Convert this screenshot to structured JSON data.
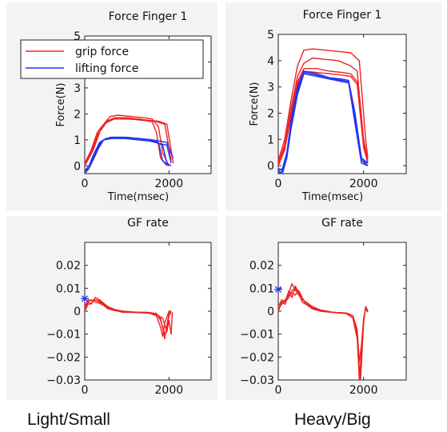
{
  "colors": {
    "grip": "#ee2222",
    "lift": "#2233ee",
    "marker": "#2233ee"
  },
  "captions": [
    "Light/Small",
    "Heavy/Big"
  ],
  "legend": {
    "entries": [
      "grip force",
      "lifting force"
    ],
    "placement": "top-left"
  },
  "chart_data": [
    {
      "type": "line",
      "title": "Force Finger 1",
      "xlabel": "Time(msec)",
      "ylabel": "Force(N)",
      "xlim": [
        0,
        3000
      ],
      "ylim": [
        -0.3,
        5
      ],
      "xticks": [
        0,
        2000
      ],
      "yticks": [
        0,
        1,
        2,
        3,
        4,
        5
      ],
      "ytick_labels": [
        "0",
        "1",
        "2",
        "3",
        "4",
        "5"
      ],
      "series": [
        {
          "name": "grip force",
          "color": "grip",
          "x": [
            0,
            150,
            300,
            500,
            700,
            1000,
            1300,
            1500,
            1700,
            1900,
            2050
          ],
          "y": [
            0.1,
            0.6,
            1.3,
            1.7,
            1.85,
            1.85,
            1.8,
            1.75,
            1.7,
            1.6,
            0.2
          ]
        },
        {
          "name": "grip force",
          "color": "grip",
          "x": [
            0,
            150,
            300,
            500,
            700,
            1000,
            1300,
            1500,
            1750,
            1950,
            2100
          ],
          "y": [
            0.0,
            0.5,
            1.2,
            1.65,
            1.8,
            1.8,
            1.78,
            1.75,
            1.72,
            1.6,
            0.1
          ]
        },
        {
          "name": "grip force",
          "color": "grip",
          "x": [
            0,
            200,
            400,
            600,
            800,
            1100,
            1400,
            1600,
            1750,
            1850,
            2000
          ],
          "y": [
            0.0,
            0.6,
            1.5,
            1.9,
            1.95,
            1.9,
            1.85,
            1.8,
            1.5,
            0.5,
            0.0
          ]
        },
        {
          "name": "grip force",
          "color": "grip",
          "x": [
            0,
            150,
            350,
            550,
            800,
            1100,
            1400,
            1600,
            1700,
            1800,
            1950
          ],
          "y": [
            0.05,
            0.5,
            1.3,
            1.75,
            1.85,
            1.8,
            1.75,
            1.7,
            1.3,
            0.3,
            0.0
          ]
        },
        {
          "name": "lifting force",
          "color": "lift",
          "x": [
            0,
            100,
            200,
            350,
            500,
            700,
            1000,
            1300,
            1600,
            1800,
            1950,
            2100
          ],
          "y": [
            -0.2,
            -0.1,
            0.3,
            0.85,
            1.05,
            1.1,
            1.1,
            1.05,
            1.0,
            0.95,
            0.9,
            0.3
          ]
        },
        {
          "name": "lifting force",
          "color": "lift",
          "x": [
            0,
            100,
            200,
            350,
            500,
            700,
            1000,
            1300,
            1600,
            1750,
            1850,
            2000
          ],
          "y": [
            -0.2,
            0.0,
            0.4,
            0.9,
            1.05,
            1.1,
            1.08,
            1.05,
            1.0,
            0.9,
            0.2,
            0.0
          ]
        },
        {
          "name": "lifting force",
          "color": "lift",
          "x": [
            0,
            100,
            250,
            400,
            600,
            900,
            1200,
            1500,
            1700,
            1850,
            1950,
            2050
          ],
          "y": [
            -0.3,
            -0.1,
            0.4,
            0.95,
            1.1,
            1.1,
            1.05,
            1.0,
            0.9,
            0.8,
            0.1,
            0.0
          ]
        },
        {
          "name": "lifting force",
          "color": "lift",
          "x": [
            0,
            150,
            300,
            450,
            650,
            950,
            1250,
            1550,
            1800,
            1950,
            2050
          ],
          "y": [
            -0.2,
            0.1,
            0.6,
            1.0,
            1.05,
            1.05,
            1.0,
            0.95,
            0.85,
            0.8,
            0.1
          ]
        }
      ]
    },
    {
      "type": "line",
      "title": "Force Finger 1",
      "xlabel": "Time(msec)",
      "ylabel": "Force(N)",
      "xlim": [
        0,
        3000
      ],
      "ylim": [
        -0.3,
        5
      ],
      "xticks": [
        0,
        2000
      ],
      "yticks": [
        0,
        1,
        2,
        3,
        4,
        5
      ],
      "ytick_labels": [
        "0",
        "1",
        "2",
        "3",
        "4",
        "5"
      ],
      "series": [
        {
          "name": "grip force",
          "color": "grip",
          "x": [
            0,
            150,
            300,
            450,
            600,
            800,
            1100,
            1400,
            1700,
            1900,
            2050,
            2100
          ],
          "y": [
            0.2,
            1.0,
            2.5,
            3.8,
            4.4,
            4.45,
            4.4,
            4.35,
            4.3,
            4.0,
            1.0,
            0.3
          ]
        },
        {
          "name": "grip force",
          "color": "grip",
          "x": [
            0,
            150,
            300,
            450,
            600,
            800,
            1100,
            1400,
            1700,
            1850,
            2000,
            2100
          ],
          "y": [
            0.1,
            0.8,
            2.2,
            3.4,
            3.9,
            4.1,
            4.05,
            4.0,
            3.8,
            3.6,
            1.0,
            0.2
          ]
        },
        {
          "name": "grip force",
          "color": "grip",
          "x": [
            0,
            150,
            300,
            450,
            600,
            900,
            1200,
            1500,
            1700,
            1850,
            2000,
            2100
          ],
          "y": [
            0.0,
            0.7,
            2.0,
            3.2,
            3.7,
            3.7,
            3.6,
            3.55,
            3.5,
            3.2,
            0.8,
            0.1
          ]
        },
        {
          "name": "grip force",
          "color": "grip",
          "x": [
            0,
            150,
            300,
            450,
            600,
            900,
            1200,
            1500,
            1700,
            1850,
            2000,
            2100
          ],
          "y": [
            0.0,
            0.6,
            1.9,
            3.1,
            3.6,
            3.55,
            3.5,
            3.45,
            3.4,
            3.1,
            0.7,
            0.1
          ]
        },
        {
          "name": "lifting force",
          "color": "lift",
          "x": [
            0,
            100,
            200,
            300,
            450,
            600,
            900,
            1200,
            1500,
            1650,
            1800,
            1950,
            2100
          ],
          "y": [
            -0.2,
            -0.3,
            0.3,
            1.5,
            2.8,
            3.6,
            3.5,
            3.35,
            3.3,
            3.25,
            2.0,
            0.3,
            0.0
          ]
        },
        {
          "name": "lifting force",
          "color": "lift",
          "x": [
            0,
            100,
            200,
            300,
            450,
            600,
            900,
            1200,
            1500,
            1650,
            1800,
            1950,
            2100
          ],
          "y": [
            -0.1,
            -0.2,
            0.4,
            1.6,
            2.9,
            3.55,
            3.45,
            3.3,
            3.25,
            3.2,
            1.8,
            0.2,
            0.0
          ]
        },
        {
          "name": "lifting force",
          "color": "lift",
          "x": [
            0,
            100,
            200,
            300,
            450,
            600,
            900,
            1200,
            1500,
            1650,
            1800,
            1950,
            2100
          ],
          "y": [
            -0.3,
            -0.2,
            0.3,
            1.4,
            2.7,
            3.5,
            3.4,
            3.3,
            3.2,
            3.15,
            1.6,
            0.1,
            0.0
          ]
        },
        {
          "name": "lifting force",
          "color": "lift",
          "x": [
            0,
            100,
            200,
            300,
            450,
            600,
            900,
            1200,
            1500,
            1650,
            1800,
            1950,
            2100
          ],
          "y": [
            -0.2,
            -0.1,
            0.5,
            1.7,
            3.0,
            3.6,
            3.5,
            3.35,
            3.25,
            3.2,
            1.9,
            0.3,
            0.1
          ]
        }
      ]
    },
    {
      "type": "line",
      "title": "GF rate",
      "xlabel": "",
      "ylabel": "",
      "xlim": [
        0,
        3000
      ],
      "ylim": [
        -0.03,
        0.03
      ],
      "xticks": [
        0,
        2000
      ],
      "yticks": [
        -0.03,
        -0.02,
        -0.01,
        0,
        0.01,
        0.02
      ],
      "ytick_labels": [
        "−0.03",
        "−0.02",
        "−0.01",
        "0",
        "0.01",
        "0.02"
      ],
      "marker": {
        "x": 0,
        "y": 0.0055
      },
      "series": [
        {
          "color": "grip",
          "x": [
            0,
            80,
            150,
            250,
            350,
            450,
            550,
            700,
            900,
            1200,
            1500,
            1700,
            1800,
            1850,
            1900,
            1950,
            2000,
            2050
          ],
          "y": [
            0.002,
            0.005,
            0.0045,
            0.005,
            0.004,
            0.003,
            0.0015,
            0.0005,
            -0.0005,
            -0.0005,
            -0.0005,
            -0.001,
            -0.004,
            -0.007,
            -0.01,
            -0.008,
            -0.002,
            -0.0005
          ]
        },
        {
          "color": "grip",
          "x": [
            0,
            80,
            150,
            250,
            350,
            450,
            550,
            700,
            900,
            1200,
            1500,
            1700,
            1800,
            1900,
            1950,
            2000,
            2050
          ],
          "y": [
            0.001,
            0.004,
            0.003,
            0.006,
            0.005,
            0.0035,
            0.002,
            0.0008,
            0.0,
            -0.0005,
            -0.0008,
            -0.001,
            -0.003,
            -0.012,
            -0.006,
            -0.001,
            0.0
          ]
        },
        {
          "color": "grip",
          "x": [
            0,
            80,
            150,
            250,
            350,
            450,
            550,
            700,
            900,
            1200,
            1500,
            1700,
            1800,
            1850,
            1900,
            2000,
            2050
          ],
          "y": [
            0.0,
            0.003,
            0.0035,
            0.005,
            0.0045,
            0.003,
            0.0015,
            0.0005,
            0.0,
            -0.0004,
            -0.0006,
            -0.002,
            -0.007,
            -0.011,
            -0.005,
            0.0,
            0.0
          ]
        },
        {
          "color": "grip",
          "x": [
            0,
            80,
            150,
            250,
            350,
            450,
            550,
            700,
            900,
            1200,
            1500,
            1700,
            1850,
            1950,
            2000,
            2050,
            2080
          ],
          "y": [
            0.002,
            0.004,
            0.005,
            0.004,
            0.0035,
            0.0025,
            0.001,
            0.0003,
            -0.0003,
            -0.0006,
            -0.0008,
            -0.0015,
            -0.003,
            -0.009,
            -0.004,
            -0.01,
            -0.0005
          ]
        }
      ]
    },
    {
      "type": "line",
      "title": "GF rate",
      "xlabel": "",
      "ylabel": "",
      "xlim": [
        0,
        3000
      ],
      "ylim": [
        -0.03,
        0.03
      ],
      "xticks": [
        0,
        2000
      ],
      "yticks": [
        -0.03,
        -0.02,
        -0.01,
        0,
        0.01,
        0.02
      ],
      "ytick_labels": [
        "−0.03",
        "−0.02",
        "−0.01",
        "0",
        "0.01",
        "0.02"
      ],
      "marker": {
        "x": 0,
        "y": 0.0095
      },
      "series": [
        {
          "color": "grip",
          "x": [
            0,
            80,
            160,
            250,
            320,
            400,
            480,
            560,
            650,
            800,
            1000,
            1300,
            1600,
            1750,
            1850,
            1900,
            1930,
            1960,
            2000,
            2050,
            2100
          ],
          "y": [
            0.0,
            0.004,
            0.003,
            0.008,
            0.012,
            0.009,
            0.008,
            0.004,
            0.003,
            0.001,
            0.0,
            -0.0005,
            -0.0008,
            -0.002,
            -0.01,
            -0.025,
            -0.03,
            -0.02,
            -0.004,
            0.002,
            0.0
          ]
        },
        {
          "color": "grip",
          "x": [
            0,
            80,
            160,
            250,
            320,
            400,
            480,
            560,
            650,
            800,
            1000,
            1300,
            1600,
            1750,
            1850,
            1900,
            1950,
            2000,
            2050,
            2100
          ],
          "y": [
            0.002,
            0.005,
            0.004,
            0.006,
            0.009,
            0.01,
            0.007,
            0.005,
            0.004,
            0.002,
            0.0005,
            -0.0005,
            -0.001,
            -0.003,
            -0.012,
            -0.028,
            -0.02,
            -0.005,
            0.002,
            0.0
          ]
        },
        {
          "color": "grip",
          "x": [
            0,
            80,
            160,
            250,
            320,
            400,
            480,
            560,
            650,
            800,
            1000,
            1300,
            1600,
            1750,
            1850,
            1900,
            1950,
            2000,
            2050,
            2100
          ],
          "y": [
            0.001,
            0.003,
            0.005,
            0.007,
            0.008,
            0.007,
            0.009,
            0.006,
            0.003,
            0.0015,
            0.0,
            -0.0005,
            -0.0008,
            -0.002,
            -0.008,
            -0.022,
            -0.015,
            -0.003,
            0.001,
            -0.0005
          ]
        },
        {
          "color": "grip",
          "x": [
            0,
            80,
            160,
            250,
            320,
            400,
            480,
            560,
            650,
            800,
            1000,
            1300,
            1600,
            1750,
            1850,
            1900,
            1950,
            2000,
            2050,
            2100
          ],
          "y": [
            0.0,
            0.004,
            0.004,
            0.009,
            0.006,
            0.011,
            0.008,
            0.005,
            0.004,
            0.001,
            0.0,
            -0.0006,
            -0.001,
            -0.003,
            -0.01,
            -0.03,
            -0.018,
            -0.004,
            0.002,
            0.0
          ]
        }
      ]
    }
  ]
}
